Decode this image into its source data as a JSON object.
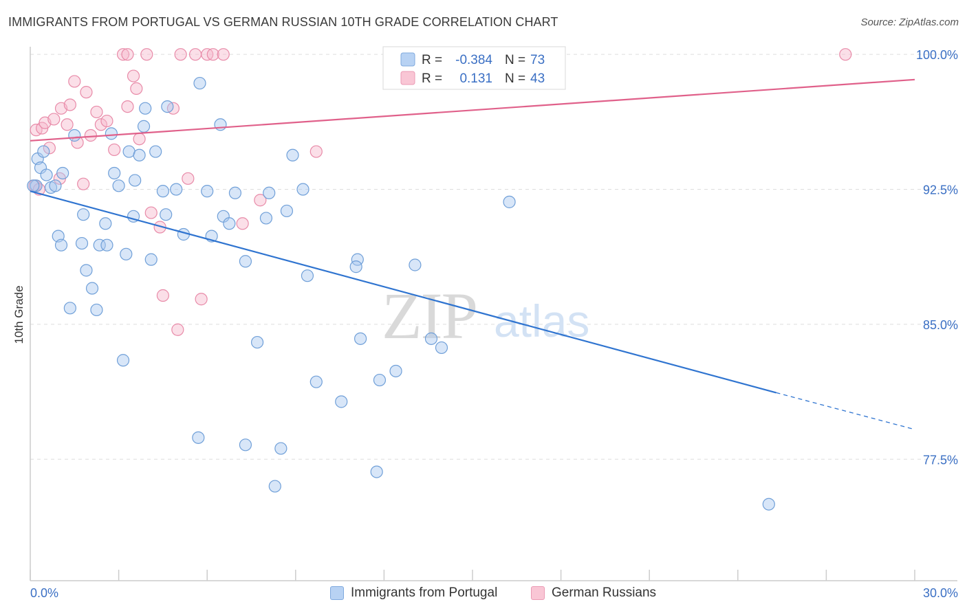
{
  "title": "IMMIGRANTS FROM PORTUGAL VS GERMAN RUSSIAN 10TH GRADE CORRELATION CHART",
  "source": "Source: ZipAtlas.com",
  "watermark": {
    "zip": "ZIP",
    "atlas": "atlas"
  },
  "legend_top": {
    "rows": [
      {
        "r_label": "R =",
        "r_value": "-0.384",
        "n_label": "N =",
        "n_value": "73"
      },
      {
        "r_label": "R =",
        "r_value": "0.131",
        "n_label": "N =",
        "n_value": "43"
      }
    ]
  },
  "legend_bottom": {
    "items": [
      "Immigrants from Portugal",
      "German Russians"
    ]
  },
  "colors": {
    "blue_fill": "#a9c8f0",
    "blue_stroke": "#6f9fd8",
    "blue_line": "#2f74d0",
    "pink_fill": "#f7b8cb",
    "pink_stroke": "#e88aa8",
    "pink_line": "#e0608a",
    "value_text": "#3a6fc4",
    "grid": "#dddddd"
  },
  "chart_data": {
    "type": "scatter",
    "ylabel": "10th Grade",
    "xlabel": "",
    "xlim": [
      0,
      30
    ],
    "ylim": [
      70.75,
      100.35
    ],
    "x_tick_labels": [
      "0.0%",
      "30.0%"
    ],
    "y_ticks": [
      100.0,
      92.5,
      85.0,
      77.5
    ],
    "y_tick_labels": [
      "100.0%",
      "92.5%",
      "85.0%",
      "77.5%"
    ],
    "grid": true,
    "series": [
      {
        "name": "Immigrants from Portugal",
        "r": -0.384,
        "n": 73,
        "trend": {
          "x0": 0,
          "y0": 92.4,
          "x1": 25.3,
          "y1": 81.2,
          "dash_to_x": 29.9,
          "dash_to_y": 79.2
        },
        "points": [
          [
            0.2,
            92.7
          ],
          [
            0.25,
            94.2
          ],
          [
            0.35,
            93.7
          ],
          [
            0.45,
            94.6
          ],
          [
            0.55,
            93.3
          ],
          [
            0.7,
            92.6
          ],
          [
            0.85,
            92.7
          ],
          [
            1.1,
            93.4
          ],
          [
            0.95,
            89.9
          ],
          [
            1.05,
            89.4
          ],
          [
            1.35,
            85.9
          ],
          [
            1.5,
            95.5
          ],
          [
            1.8,
            91.1
          ],
          [
            1.9,
            88.0
          ],
          [
            2.1,
            87.0
          ],
          [
            2.25,
            85.8
          ],
          [
            1.75,
            89.5
          ],
          [
            2.35,
            89.4
          ],
          [
            2.55,
            90.6
          ],
          [
            2.6,
            89.4
          ],
          [
            2.75,
            95.6
          ],
          [
            2.85,
            93.4
          ],
          [
            3.0,
            92.7
          ],
          [
            3.15,
            83.0
          ],
          [
            3.25,
            88.9
          ],
          [
            3.35,
            94.6
          ],
          [
            3.55,
            93.0
          ],
          [
            3.5,
            91.0
          ],
          [
            3.7,
            94.4
          ],
          [
            3.85,
            96.0
          ],
          [
            3.9,
            97.0
          ],
          [
            4.1,
            88.6
          ],
          [
            4.25,
            94.6
          ],
          [
            4.5,
            92.4
          ],
          [
            4.6,
            91.1
          ],
          [
            4.65,
            97.1
          ],
          [
            4.95,
            92.5
          ],
          [
            5.2,
            90.0
          ],
          [
            5.75,
            98.4
          ],
          [
            6.0,
            92.4
          ],
          [
            6.15,
            89.9
          ],
          [
            6.45,
            96.1
          ],
          [
            6.55,
            91.0
          ],
          [
            6.75,
            90.6
          ],
          [
            6.95,
            92.3
          ],
          [
            7.3,
            88.5
          ],
          [
            7.7,
            84.0
          ],
          [
            8.0,
            90.9
          ],
          [
            8.1,
            92.3
          ],
          [
            8.7,
            91.3
          ],
          [
            8.9,
            94.4
          ],
          [
            9.25,
            92.5
          ],
          [
            9.4,
            87.7
          ],
          [
            9.7,
            81.8
          ],
          [
            10.55,
            80.7
          ],
          [
            11.1,
            88.6
          ],
          [
            11.05,
            88.2
          ],
          [
            11.2,
            84.2
          ],
          [
            11.85,
            81.9
          ],
          [
            12.4,
            82.4
          ],
          [
            13.05,
            88.3
          ],
          [
            13.6,
            84.2
          ],
          [
            13.95,
            83.7
          ],
          [
            14.0,
            100.0
          ],
          [
            5.7,
            78.7
          ],
          [
            7.3,
            78.3
          ],
          [
            8.5,
            78.1
          ],
          [
            11.75,
            76.8
          ],
          [
            8.3,
            76.0
          ],
          [
            16.0,
            100.0
          ],
          [
            16.25,
            91.8
          ],
          [
            25.05,
            75.0
          ],
          [
            0.1,
            92.7
          ]
        ]
      },
      {
        "name": "German Russians",
        "r": 0.131,
        "n": 43,
        "trend": {
          "x0": 0,
          "y0": 95.2,
          "x1": 30.0,
          "y1": 98.6
        },
        "points": [
          [
            0.2,
            95.8
          ],
          [
            0.4,
            95.9
          ],
          [
            0.5,
            96.2
          ],
          [
            0.65,
            94.8
          ],
          [
            0.8,
            96.4
          ],
          [
            1.0,
            93.1
          ],
          [
            1.05,
            97.0
          ],
          [
            1.25,
            96.1
          ],
          [
            1.35,
            97.2
          ],
          [
            1.5,
            98.5
          ],
          [
            1.6,
            95.1
          ],
          [
            1.8,
            92.8
          ],
          [
            1.9,
            97.9
          ],
          [
            2.05,
            95.5
          ],
          [
            2.25,
            96.8
          ],
          [
            2.4,
            96.1
          ],
          [
            2.6,
            96.3
          ],
          [
            2.85,
            94.7
          ],
          [
            3.15,
            100.0
          ],
          [
            3.3,
            100.0
          ],
          [
            3.3,
            97.1
          ],
          [
            3.5,
            98.8
          ],
          [
            3.6,
            98.1
          ],
          [
            3.7,
            95.3
          ],
          [
            3.95,
            100.0
          ],
          [
            4.1,
            91.2
          ],
          [
            4.4,
            90.4
          ],
          [
            4.5,
            86.6
          ],
          [
            4.85,
            97.0
          ],
          [
            5.0,
            84.7
          ],
          [
            5.1,
            100.0
          ],
          [
            5.35,
            93.1
          ],
          [
            5.6,
            100.0
          ],
          [
            5.8,
            86.4
          ],
          [
            6.0,
            100.0
          ],
          [
            6.2,
            100.0
          ],
          [
            6.55,
            100.0
          ],
          [
            7.2,
            90.6
          ],
          [
            7.8,
            91.9
          ],
          [
            9.7,
            94.6
          ],
          [
            27.65,
            100.0
          ],
          [
            0.15,
            92.7
          ],
          [
            0.3,
            92.5
          ]
        ]
      }
    ]
  }
}
